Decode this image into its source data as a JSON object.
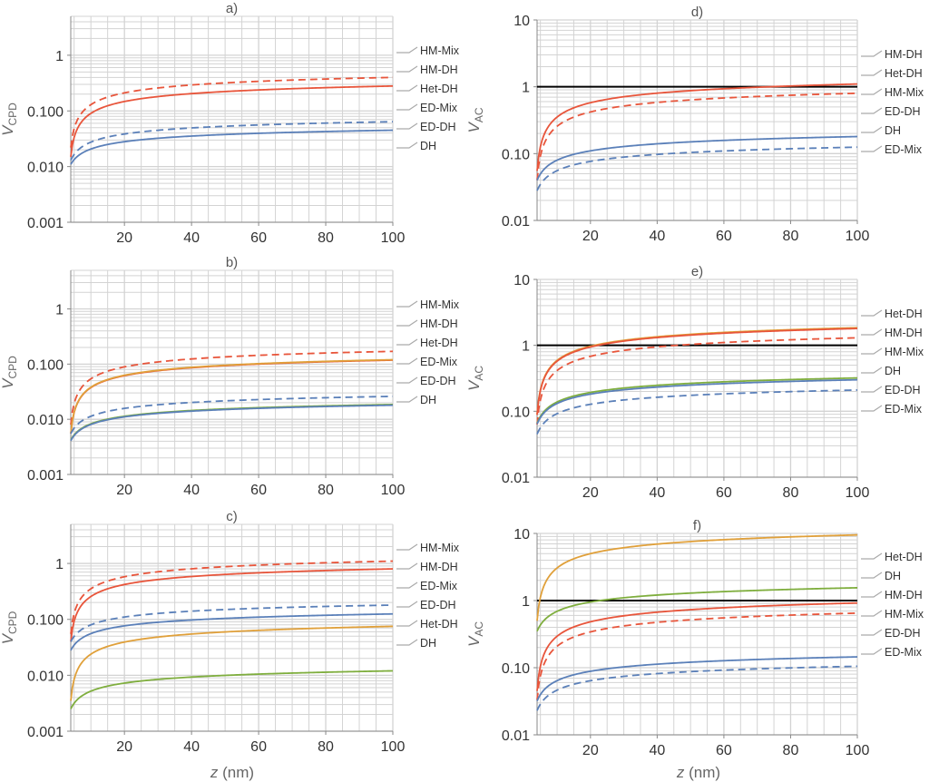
{
  "xaxis": {
    "var": "z",
    "unit": "(nm)"
  },
  "chart_data": [
    {
      "panel": "a)",
      "type": "line",
      "ylabel": {
        "base": "V",
        "sub": "CPD"
      },
      "xlim": [
        4,
        100
      ],
      "ylim": [
        0.001,
        5
      ],
      "yscale": "log",
      "xticks": [
        "20",
        "40",
        "60",
        "80",
        "100"
      ],
      "yticks": [
        "0.001",
        "0.010",
        "0.100",
        "1"
      ],
      "series": [
        {
          "name": "HM-Mix",
          "color": "#e8553b",
          "dash": true,
          "values": [
            [
              4,
              0.022
            ],
            [
              100,
              0.4
            ]
          ]
        },
        {
          "name": "HM-DH",
          "color": "#e8553b",
          "dash": false,
          "values": [
            [
              4,
              0.015
            ],
            [
              100,
              0.28
            ]
          ]
        },
        {
          "name": "ED-Mix",
          "color": "#5b80b9",
          "dash": true,
          "values": [
            [
              4,
              0.013
            ],
            [
              100,
              0.064
            ]
          ]
        },
        {
          "name": "ED-DH",
          "color": "#5b80b9",
          "dash": false,
          "values": [
            [
              4,
              0.011
            ],
            [
              100,
              0.045
            ]
          ]
        }
      ],
      "legend": [
        "HM-Mix",
        "HM-DH",
        "Het-DH",
        "ED-Mix",
        "ED-DH",
        "DH"
      ]
    },
    {
      "panel": "b)",
      "type": "line",
      "ylabel": {
        "base": "V",
        "sub": "CPD"
      },
      "xlim": [
        4,
        100
      ],
      "ylim": [
        0.001,
        5
      ],
      "yscale": "log",
      "xticks": [
        "20",
        "40",
        "60",
        "80",
        "100"
      ],
      "yticks": [
        "0.001",
        "0.010",
        "0.100",
        "1"
      ],
      "series": [
        {
          "name": "HM-Mix",
          "color": "#e8553b",
          "dash": true,
          "values": [
            [
              4,
              0.008
            ],
            [
              100,
              0.17
            ]
          ]
        },
        {
          "name": "HM-DH",
          "color": "#e8553b",
          "dash": false,
          "values": [
            [
              4,
              0.0055
            ],
            [
              100,
              0.118
            ]
          ]
        },
        {
          "name": "Het-DH",
          "color": "#e0a03a",
          "dash": false,
          "values": [
            [
              4,
              0.0055
            ],
            [
              100,
              0.12
            ]
          ]
        },
        {
          "name": "ED-Mix",
          "color": "#5b80b9",
          "dash": true,
          "values": [
            [
              4,
              0.0055
            ],
            [
              100,
              0.026
            ]
          ]
        },
        {
          "name": "DH",
          "color": "#7fae3e",
          "dash": false,
          "values": [
            [
              4,
              0.0042
            ],
            [
              100,
              0.0185
            ]
          ]
        },
        {
          "name": "ED-DH",
          "color": "#5b80b9",
          "dash": false,
          "values": [
            [
              4,
              0.0041
            ],
            [
              100,
              0.018
            ]
          ]
        }
      ],
      "legend": [
        "HM-Mix",
        "HM-DH",
        "Het-DH",
        "ED-Mix",
        "ED-DH",
        "DH"
      ]
    },
    {
      "panel": "c)",
      "type": "line",
      "ylabel": {
        "base": "V",
        "sub": "CPD"
      },
      "xlim": [
        4,
        100
      ],
      "ylim": [
        0.001,
        5
      ],
      "yscale": "log",
      "xticks": [
        "20",
        "40",
        "60",
        "80",
        "100"
      ],
      "yticks": [
        "0.001",
        "0.010",
        "0.100",
        "1"
      ],
      "series": [
        {
          "name": "HM-Mix",
          "color": "#e8553b",
          "dash": true,
          "values": [
            [
              4,
              0.055
            ],
            [
              100,
              1.1
            ]
          ]
        },
        {
          "name": "HM-DH",
          "color": "#e8553b",
          "dash": false,
          "values": [
            [
              4,
              0.04
            ],
            [
              100,
              0.8
            ]
          ]
        },
        {
          "name": "ED-Mix",
          "color": "#5b80b9",
          "dash": true,
          "values": [
            [
              4,
              0.04
            ],
            [
              100,
              0.18
            ]
          ]
        },
        {
          "name": "ED-DH",
          "color": "#5b80b9",
          "dash": false,
          "values": [
            [
              4,
              0.028
            ],
            [
              100,
              0.125
            ]
          ]
        },
        {
          "name": "Het-DH",
          "color": "#e0a03a",
          "dash": false,
          "values": [
            [
              4,
              0.0035
            ],
            [
              100,
              0.075
            ]
          ]
        },
        {
          "name": "DH",
          "color": "#7fae3e",
          "dash": false,
          "values": [
            [
              4,
              0.0025
            ],
            [
              100,
              0.012
            ]
          ]
        }
      ],
      "legend": [
        "HM-Mix",
        "HM-DH",
        "ED-Mix",
        "ED-DH",
        "Het-DH",
        "DH"
      ]
    },
    {
      "panel": "d)",
      "type": "line",
      "ylabel": {
        "base": "V",
        "sub": "AC"
      },
      "xlim": [
        4,
        100
      ],
      "ylim": [
        0.01,
        10
      ],
      "yscale": "log",
      "xticks": [
        "20",
        "40",
        "60",
        "80",
        "100"
      ],
      "yticks": [
        "0.01",
        "0.10",
        "1",
        "10"
      ],
      "hline": 1,
      "series": [
        {
          "name": "HM-DH",
          "color": "#e8553b",
          "dash": false,
          "values": [
            [
              4,
              0.055
            ],
            [
              100,
              1.1
            ]
          ]
        },
        {
          "name": "HM-Mix",
          "color": "#e8553b",
          "dash": true,
          "values": [
            [
              4,
              0.04
            ],
            [
              100,
              0.8
            ]
          ]
        },
        {
          "name": "ED-DH",
          "color": "#5b80b9",
          "dash": false,
          "values": [
            [
              4,
              0.04
            ],
            [
              100,
              0.18
            ]
          ]
        },
        {
          "name": "ED-Mix",
          "color": "#5b80b9",
          "dash": true,
          "values": [
            [
              4,
              0.028
            ],
            [
              100,
              0.125
            ]
          ]
        }
      ],
      "legend": [
        "HM-DH",
        "Het-DH",
        "HM-Mix",
        "ED-DH",
        "DH",
        "ED-Mix"
      ]
    },
    {
      "panel": "e)",
      "type": "line",
      "ylabel": {
        "base": "V",
        "sub": "AC"
      },
      "xlim": [
        4,
        100
      ],
      "ylim": [
        0.01,
        10
      ],
      "yscale": "log",
      "xticks": [
        "20",
        "40",
        "60",
        "80",
        "100"
      ],
      "yticks": [
        "0.01",
        "0.10",
        "1",
        "10"
      ],
      "hline": 1,
      "series": [
        {
          "name": "Het-DH",
          "color": "#e0a03a",
          "dash": false,
          "values": [
            [
              4,
              0.09
            ],
            [
              100,
              1.85
            ]
          ]
        },
        {
          "name": "HM-DH",
          "color": "#e8553b",
          "dash": false,
          "values": [
            [
              4,
              0.088
            ],
            [
              100,
              1.8
            ]
          ]
        },
        {
          "name": "HM-Mix",
          "color": "#e8553b",
          "dash": true,
          "values": [
            [
              4,
              0.063
            ],
            [
              100,
              1.3
            ]
          ]
        },
        {
          "name": "DH",
          "color": "#7fae3e",
          "dash": false,
          "values": [
            [
              4,
              0.066
            ],
            [
              100,
              0.32
            ]
          ]
        },
        {
          "name": "ED-DH",
          "color": "#5b80b9",
          "dash": false,
          "values": [
            [
              4,
              0.064
            ],
            [
              100,
              0.3
            ]
          ]
        },
        {
          "name": "ED-Mix",
          "color": "#5b80b9",
          "dash": true,
          "values": [
            [
              4,
              0.045
            ],
            [
              100,
              0.21
            ]
          ]
        }
      ],
      "legend": [
        "Het-DH",
        "HM-DH",
        "HM-Mix",
        "DH",
        "ED-DH",
        "ED-Mix"
      ]
    },
    {
      "panel": "f)",
      "type": "line",
      "ylabel": {
        "base": "V",
        "sub": "AC"
      },
      "xlim": [
        4,
        100
      ],
      "ylim": [
        0.01,
        10
      ],
      "yscale": "log",
      "xticks": [
        "20",
        "40",
        "60",
        "80",
        "100"
      ],
      "yticks": [
        "0.01",
        "0.10",
        "1",
        "10"
      ],
      "hline": 1,
      "series": [
        {
          "name": "Het-DH",
          "color": "#e0a03a",
          "dash": false,
          "values": [
            [
              4,
              0.5
            ],
            [
              100,
              9.5
            ]
          ]
        },
        {
          "name": "DH",
          "color": "#7fae3e",
          "dash": false,
          "values": [
            [
              4,
              0.35
            ],
            [
              100,
              1.55
            ]
          ]
        },
        {
          "name": "HM-DH",
          "color": "#e8553b",
          "dash": false,
          "values": [
            [
              4,
              0.045
            ],
            [
              100,
              0.92
            ]
          ]
        },
        {
          "name": "HM-Mix",
          "color": "#e8553b",
          "dash": true,
          "values": [
            [
              4,
              0.033
            ],
            [
              100,
              0.65
            ]
          ]
        },
        {
          "name": "ED-DH",
          "color": "#5b80b9",
          "dash": false,
          "values": [
            [
              4,
              0.032
            ],
            [
              100,
              0.145
            ]
          ]
        },
        {
          "name": "ED-Mix",
          "color": "#5b80b9",
          "dash": true,
          "values": [
            [
              4,
              0.023
            ],
            [
              100,
              0.105
            ]
          ]
        }
      ],
      "legend": [
        "Het-DH",
        "DH",
        "HM-DH",
        "HM-Mix",
        "ED-DH",
        "ED-Mix"
      ]
    }
  ]
}
